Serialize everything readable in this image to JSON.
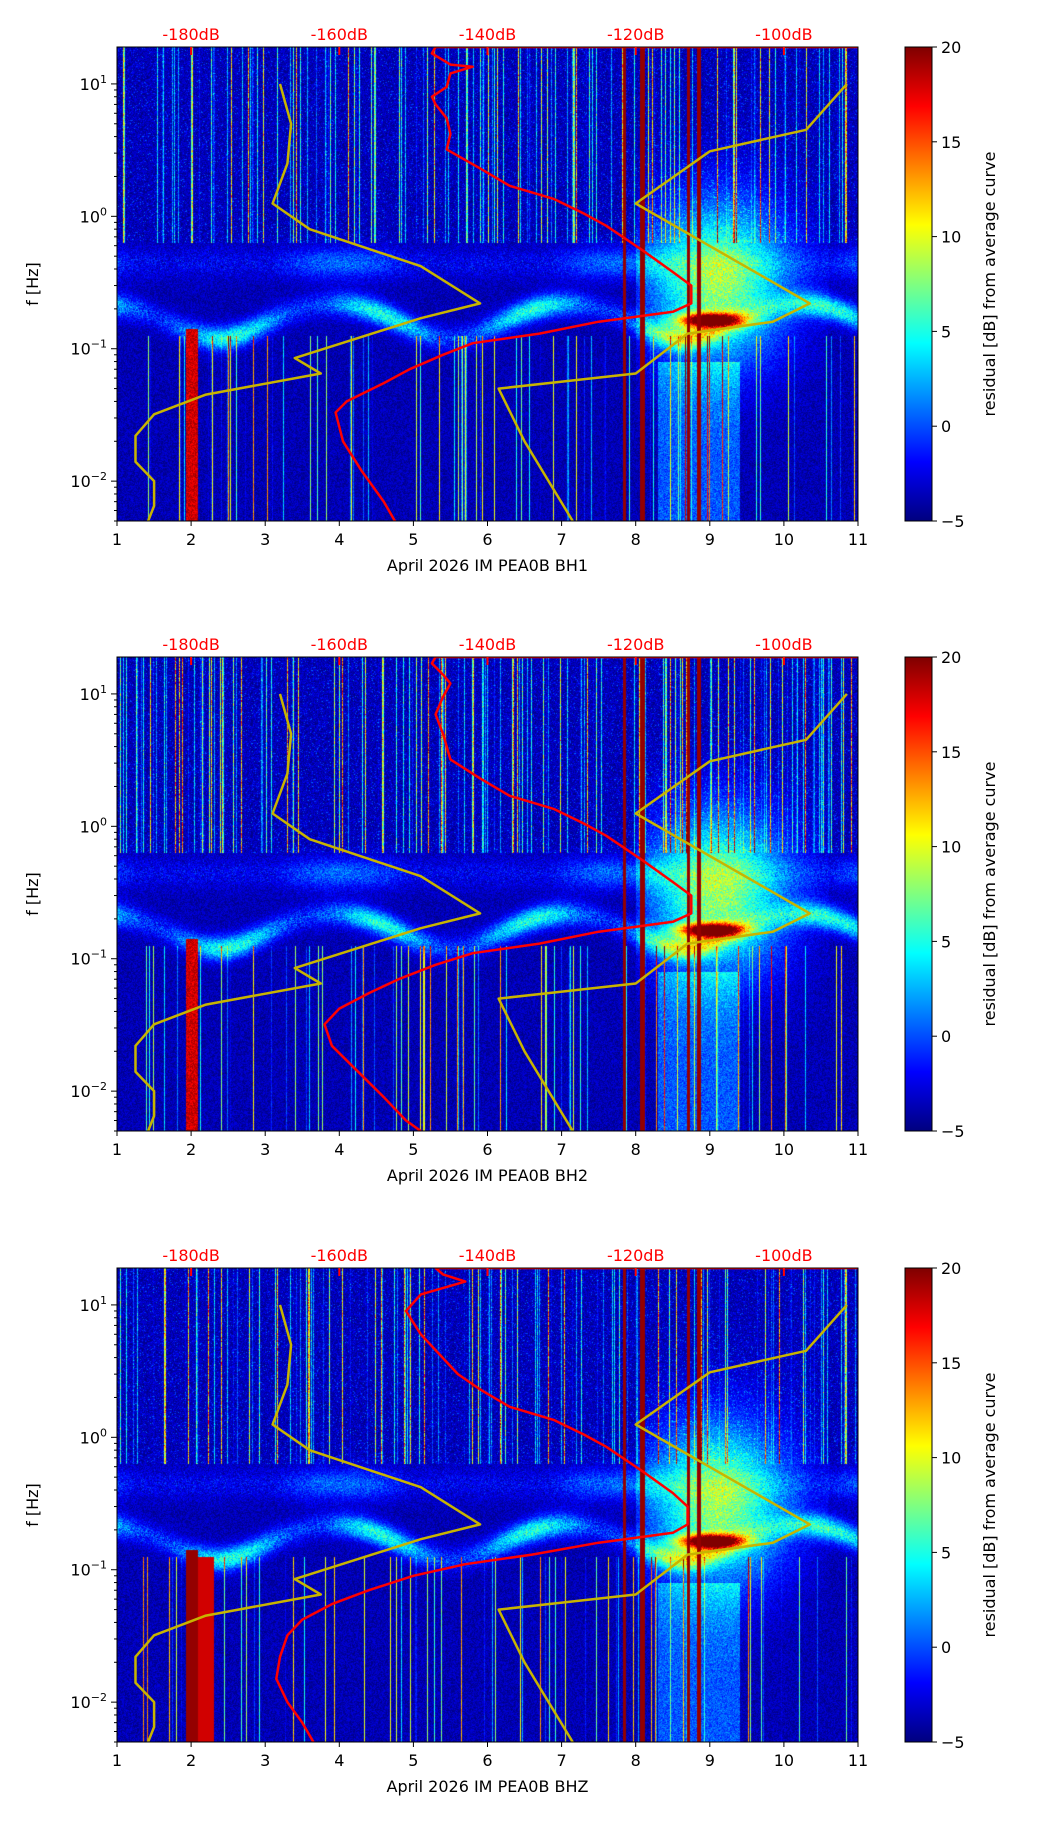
{
  "chart_data": [
    {
      "type": "heatmap",
      "panel": "BH1",
      "xlabel": "April 2026 IM PEA0B  BH1",
      "ylabel": "f [Hz]"
    },
    {
      "type": "heatmap",
      "panel": "BH2",
      "xlabel": "April 2026 IM PEA0B  BH2",
      "ylabel": "f [Hz]"
    },
    {
      "type": "heatmap",
      "panel": "BHZ",
      "xlabel": "April 2026 IM PEA0B  BHZ",
      "ylabel": "f [Hz]"
    }
  ],
  "axes": {
    "xlim": [
      1,
      11
    ],
    "xticks": [
      "1",
      "2",
      "3",
      "4",
      "5",
      "6",
      "7",
      "8",
      "9",
      "10",
      "11"
    ],
    "ylim": [
      0.005,
      19
    ],
    "yscale": "log",
    "yticks": [
      {
        "base": "10",
        "exp": "1",
        "value": 10
      },
      {
        "base": "10",
        "exp": "0",
        "value": 1
      },
      {
        "base": "10",
        "exp": "−1",
        "value": 0.1
      },
      {
        "base": "10",
        "exp": "−2",
        "value": 0.01
      }
    ],
    "top_ticks": [
      {
        "label": "-180dB",
        "db": -180
      },
      {
        "label": "-160dB",
        "db": -160
      },
      {
        "label": "-140dB",
        "db": -140
      },
      {
        "label": "-120dB",
        "db": -120
      },
      {
        "label": "-100dB",
        "db": -100
      }
    ],
    "db_axis_note": "dB = -200 + 10 * x"
  },
  "colorbar": {
    "label": "residual [dB] from average curve",
    "range": [
      -5,
      20
    ],
    "ticks": [
      "−5",
      "0",
      "5",
      "10",
      "15",
      "20"
    ],
    "colormap": "jet"
  },
  "colors": {
    "average_curve": "#ff0000",
    "model_curves": "#c8b400",
    "top_tick_labels": "#ff0000"
  },
  "models": {
    "low_noise_model_db_f": [
      [
        -168,
        10
      ],
      [
        -166.5,
        5
      ],
      [
        -167,
        2.5
      ],
      [
        -169,
        1.25
      ],
      [
        -164,
        0.8
      ],
      [
        -149,
        0.42
      ],
      [
        -141,
        0.22
      ],
      [
        -149,
        0.17
      ],
      [
        -166,
        0.085
      ],
      [
        -162.5,
        0.065
      ],
      [
        -178,
        0.045
      ],
      [
        -185,
        0.032
      ],
      [
        -187.5,
        0.022
      ],
      [
        -187.5,
        0.014
      ],
      [
        -185,
        0.01
      ],
      [
        -185,
        0.0065
      ],
      [
        -185.8,
        0.005
      ]
    ],
    "high_noise_model_db_f": [
      [
        -91.5,
        10
      ],
      [
        -97,
        4.5
      ],
      [
        -110,
        3.1
      ],
      [
        -120,
        1.25
      ],
      [
        -96.5,
        0.22
      ],
      [
        -101.5,
        0.16
      ],
      [
        -113,
        0.13
      ],
      [
        -120,
        0.065
      ],
      [
        -138.5,
        0.05
      ],
      [
        -135,
        0.02
      ],
      [
        -128.5,
        0.005
      ]
    ]
  },
  "average_curves_db_f": [
    [
      [
        -90,
        19
      ],
      [
        -147,
        19
      ],
      [
        -147.5,
        17
      ],
      [
        -145,
        14
      ],
      [
        -142,
        13.5
      ],
      [
        -145,
        12
      ],
      [
        -145.5,
        9.5
      ],
      [
        -147.5,
        8
      ],
      [
        -147,
        7
      ],
      [
        -145.5,
        5.5
      ],
      [
        -145,
        4.2
      ],
      [
        -145.5,
        3.2
      ],
      [
        -141,
        2.3
      ],
      [
        -137,
        1.7
      ],
      [
        -131,
        1.35
      ],
      [
        -127,
        1.05
      ],
      [
        -124,
        0.85
      ],
      [
        -119,
        0.55
      ],
      [
        -115,
        0.38
      ],
      [
        -112.5,
        0.3
      ],
      [
        -112.5,
        0.22
      ],
      [
        -115,
        0.19
      ],
      [
        -125,
        0.16
      ],
      [
        -133,
        0.13
      ],
      [
        -142,
        0.11
      ],
      [
        -146,
        0.09
      ],
      [
        -150.5,
        0.07
      ],
      [
        -154,
        0.055
      ],
      [
        -159,
        0.04
      ],
      [
        -160.5,
        0.033
      ],
      [
        -159.5,
        0.02
      ],
      [
        -157,
        0.012
      ],
      [
        -154,
        0.007
      ],
      [
        -152.5,
        0.005
      ]
    ],
    [
      [
        -90,
        19
      ],
      [
        -147,
        19
      ],
      [
        -147.5,
        17
      ],
      [
        -146,
        14
      ],
      [
        -145,
        12
      ],
      [
        -146,
        9.5
      ],
      [
        -147,
        7
      ],
      [
        -146,
        5
      ],
      [
        -145,
        3.2
      ],
      [
        -141,
        2.3
      ],
      [
        -137,
        1.7
      ],
      [
        -131,
        1.35
      ],
      [
        -127,
        1.05
      ],
      [
        -124,
        0.85
      ],
      [
        -119,
        0.55
      ],
      [
        -115,
        0.38
      ],
      [
        -112.5,
        0.3
      ],
      [
        -112.5,
        0.22
      ],
      [
        -115,
        0.19
      ],
      [
        -125,
        0.16
      ],
      [
        -133,
        0.13
      ],
      [
        -142,
        0.11
      ],
      [
        -147,
        0.09
      ],
      [
        -152,
        0.07
      ],
      [
        -156,
        0.055
      ],
      [
        -160,
        0.042
      ],
      [
        -162,
        0.032
      ],
      [
        -161,
        0.022
      ],
      [
        -158,
        0.015
      ],
      [
        -154,
        0.009
      ],
      [
        -151,
        0.006
      ],
      [
        -149,
        0.005
      ]
    ],
    [
      [
        -90,
        19
      ],
      [
        -147,
        19
      ],
      [
        -146,
        17
      ],
      [
        -143,
        15
      ],
      [
        -149,
        12
      ],
      [
        -151,
        9
      ],
      [
        -149,
        6
      ],
      [
        -144,
        3
      ],
      [
        -141,
        2.3
      ],
      [
        -137,
        1.7
      ],
      [
        -131,
        1.35
      ],
      [
        -127,
        1.05
      ],
      [
        -124,
        0.85
      ],
      [
        -119,
        0.55
      ],
      [
        -115,
        0.38
      ],
      [
        -113,
        0.3
      ],
      [
        -113,
        0.22
      ],
      [
        -115,
        0.19
      ],
      [
        -125,
        0.16
      ],
      [
        -134,
        0.13
      ],
      [
        -143,
        0.11
      ],
      [
        -150,
        0.09
      ],
      [
        -156,
        0.07
      ],
      [
        -161,
        0.055
      ],
      [
        -165,
        0.042
      ],
      [
        -167,
        0.032
      ],
      [
        -168,
        0.022
      ],
      [
        -168.5,
        0.015
      ],
      [
        -167,
        0.01
      ],
      [
        -165,
        0.007
      ],
      [
        -163.5,
        0.005
      ]
    ]
  ]
}
